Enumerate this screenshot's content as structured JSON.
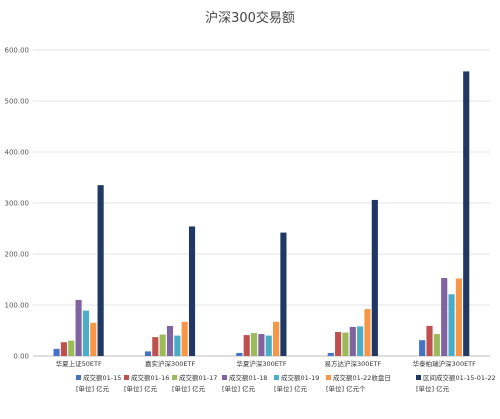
{
  "chart_data": {
    "type": "bar",
    "title": "沪深300交易额",
    "categories": [
      "华夏上证50ETF",
      "嘉实沪深300ETF",
      "华夏沪深300ETF",
      "易方达沪深300ETF",
      "华泰柏瑞沪深300ETF"
    ],
    "ylim": [
      0,
      600
    ],
    "yticks": [
      "0.00",
      "100.00",
      "200.00",
      "300.00",
      "400.00",
      "500.00",
      "600.00"
    ],
    "grid": true,
    "legend_position": "bottom",
    "series": [
      {
        "name": "成交额01-15",
        "unit": "[单位] 亿元",
        "color": "#4472c4",
        "values": [
          14,
          9,
          6,
          6,
          31
        ]
      },
      {
        "name": "成交额01-16",
        "unit": "[单位] 亿元",
        "color": "#c0504d",
        "values": [
          27,
          37,
          41,
          47,
          59
        ]
      },
      {
        "name": "成交额01-17",
        "unit": "[单位] 亿元",
        "color": "#9bbb59",
        "values": [
          30,
          42,
          45,
          46,
          43
        ]
      },
      {
        "name": "成交额01-18",
        "unit": "[单位] 亿元",
        "color": "#8064a2",
        "values": [
          110,
          59,
          43,
          57,
          153
        ]
      },
      {
        "name": "成交额01-19",
        "unit": "[单位] 亿元",
        "color": "#4bacc6",
        "values": [
          89,
          40,
          40,
          58,
          121
        ]
      },
      {
        "name": "成交额01-22收盘日",
        "unit": "[单位] 亿元个",
        "color": "#f79646",
        "values": [
          65,
          67,
          67,
          92,
          152
        ]
      },
      {
        "name": "区间成交额01-15-01-22",
        "unit": "[单位] 亿元",
        "color": "#1f3864",
        "values": [
          335,
          254,
          242,
          306,
          558
        ]
      }
    ]
  }
}
